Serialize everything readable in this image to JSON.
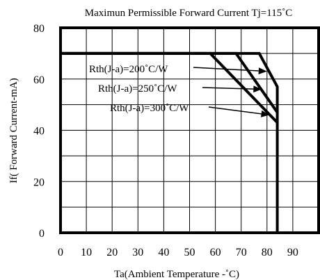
{
  "chart_data": {
    "type": "line",
    "title": "Maximun Permissible Forward Current Tj=115˚C",
    "xlabel": "Ta(Ambient Temperature -˚C)",
    "ylabel": "If( Forward Current-mA)",
    "xlim": [
      0,
      100
    ],
    "ylim": [
      0,
      80
    ],
    "x_ticks": [
      "0",
      "10",
      "20",
      "30",
      "40",
      "50",
      "60",
      "70",
      "80",
      "90"
    ],
    "y_ticks": [
      "0",
      "20",
      "40",
      "60",
      "80"
    ],
    "grid": true,
    "series": [
      {
        "name": "Rth(J-a)=200˚C/W",
        "x": [
          0,
          77,
          84,
          84
        ],
        "y": [
          70,
          70,
          57,
          0
        ]
      },
      {
        "name": "Rth(J-a)=250˚C/W",
        "x": [
          0,
          68,
          84
        ],
        "y": [
          70,
          70,
          47
        ]
      },
      {
        "name": "Rth(J-a)=300˚C/W",
        "x": [
          0,
          58,
          84
        ],
        "y": [
          70,
          70,
          43
        ]
      }
    ],
    "annotation_targets": [
      {
        "x": 80,
        "y": 63
      },
      {
        "x": 78,
        "y": 56
      },
      {
        "x": 81,
        "y": 46
      }
    ],
    "colors": {
      "line": "#000000",
      "grid": "#000000",
      "background": "#ffffff"
    }
  }
}
